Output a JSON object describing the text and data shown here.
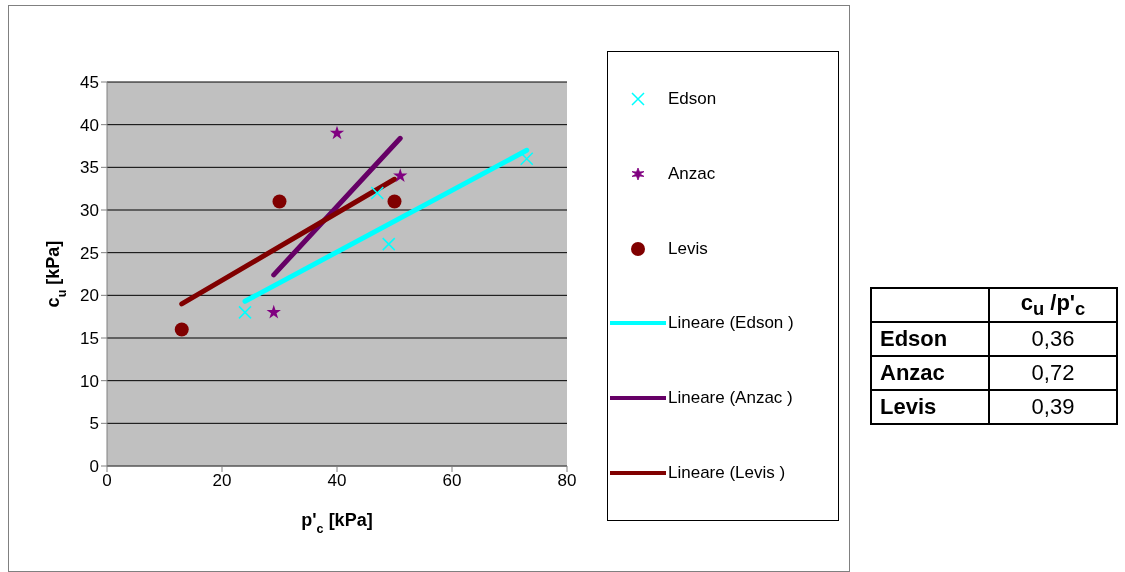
{
  "chart_data": [
    {
      "type": "scatter",
      "xlabel": "p'$_{c}$  [kPa]",
      "ylabel": "c$_{u}$ [kPa]",
      "xlim": [
        0,
        80
      ],
      "xticks": [
        0,
        20,
        40,
        60,
        80
      ],
      "ylim": [
        0,
        45
      ],
      "yticks": [
        0,
        5,
        10,
        15,
        20,
        25,
        30,
        35,
        40,
        45
      ],
      "grid": "y",
      "legend": "right",
      "series": [
        {
          "name": "Edson",
          "color": "#00ffff",
          "marker": "cross",
          "x": [
            24,
            47,
            49,
            73
          ],
          "values": [
            18,
            32,
            26,
            36
          ]
        },
        {
          "name": "Anzac",
          "color": "#800080",
          "marker": "star",
          "x": [
            29,
            40,
            51
          ],
          "values": [
            18,
            39,
            34
          ]
        },
        {
          "name": "Levis",
          "color": "#800000",
          "marker": "circle",
          "x": [
            13,
            30,
            50
          ],
          "values": [
            16,
            31,
            31
          ]
        },
        {
          "name": "Lineare (Edson )",
          "type": "line",
          "color": "#00ffff",
          "marker": "none",
          "x": [
            24,
            73
          ],
          "values": [
            19.3,
            37
          ]
        },
        {
          "name": "Lineare (Anzac )",
          "type": "line",
          "color": "#660066",
          "marker": "none",
          "x": [
            29,
            51
          ],
          "values": [
            22.4,
            38.4
          ]
        },
        {
          "name": "Lineare (Levis )",
          "type": "line",
          "color": "#800000",
          "marker": "none",
          "x": [
            13,
            50
          ],
          "values": [
            19,
            33.6
          ]
        }
      ]
    },
    {
      "type": "other",
      "title": "c$_{u}$ /p'$_{c}$",
      "categories": [
        "Edson",
        "Anzac",
        "Levis"
      ],
      "value_labels": [
        "0,36",
        "0,72",
        "0,39"
      ]
    }
  ]
}
